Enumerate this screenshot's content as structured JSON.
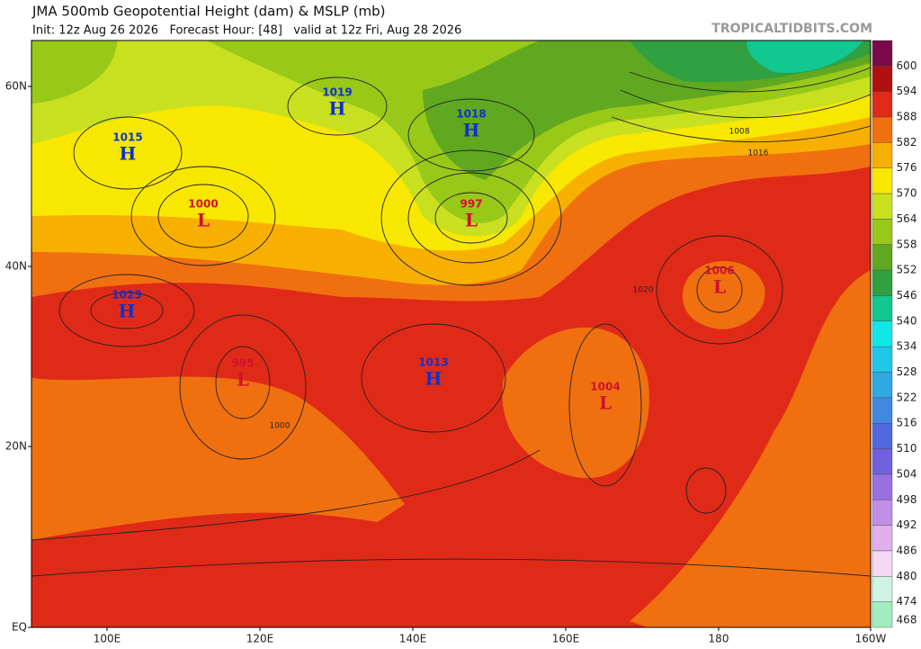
{
  "header": {
    "title": "JMA 500mb Geopotential Height (dam) & MSLP (mb)",
    "subtitle": "Init: 12z Aug 26 2026   Forecast Hour: [48]   valid at 12z Fri, Aug 28 2026",
    "credit": "TROPICALTIDBITS.COM"
  },
  "map": {
    "lat_labels": [
      "60N",
      "40N",
      "20N",
      "EQ"
    ],
    "lon_labels": [
      "100E",
      "120E",
      "140E",
      "160E",
      "180",
      "160W"
    ],
    "centers": [
      {
        "symbol": "H",
        "value": "1015"
      },
      {
        "symbol": "H",
        "value": "1019"
      },
      {
        "symbol": "H",
        "value": "1018"
      },
      {
        "symbol": "L",
        "value": "1000"
      },
      {
        "symbol": "L",
        "value": "997"
      },
      {
        "symbol": "H",
        "value": "1023"
      },
      {
        "symbol": "H",
        "value": "1013"
      },
      {
        "symbol": "L",
        "value": "995"
      },
      {
        "symbol": "L",
        "value": "1004"
      },
      {
        "symbol": "L",
        "value": "1006"
      }
    ],
    "isobar_labels": [
      "1008",
      "1016",
      "1020",
      "1000"
    ]
  },
  "colorbar": [
    {
      "label": "600",
      "color": "#7a0a4a"
    },
    {
      "label": "594",
      "color": "#b01010"
    },
    {
      "label": "588",
      "color": "#e02a18"
    },
    {
      "label": "582",
      "color": "#f07010"
    },
    {
      "label": "576",
      "color": "#f8b000"
    },
    {
      "label": "570",
      "color": "#f8e800"
    },
    {
      "label": "564",
      "color": "#c8e020"
    },
    {
      "label": "558",
      "color": "#98c818"
    },
    {
      "label": "552",
      "color": "#60a820"
    },
    {
      "label": "546",
      "color": "#30a040"
    },
    {
      "label": "540",
      "color": "#10c890"
    },
    {
      "label": "534",
      "color": "#10e8e8"
    },
    {
      "label": "528",
      "color": "#20c8e8"
    },
    {
      "label": "522",
      "color": "#30a8e0"
    },
    {
      "label": "516",
      "color": "#4088e0"
    },
    {
      "label": "510",
      "color": "#5068e0"
    },
    {
      "label": "504",
      "color": "#7060e0"
    },
    {
      "label": "498",
      "color": "#9870e0"
    },
    {
      "label": "492",
      "color": "#c090e8"
    },
    {
      "label": "486",
      "color": "#e0b0ec"
    },
    {
      "label": "480",
      "color": "#f4d8f4"
    },
    {
      "label": "474",
      "color": "#d0f4e4"
    },
    {
      "label": "468",
      "color": "#a0eec0"
    }
  ]
}
